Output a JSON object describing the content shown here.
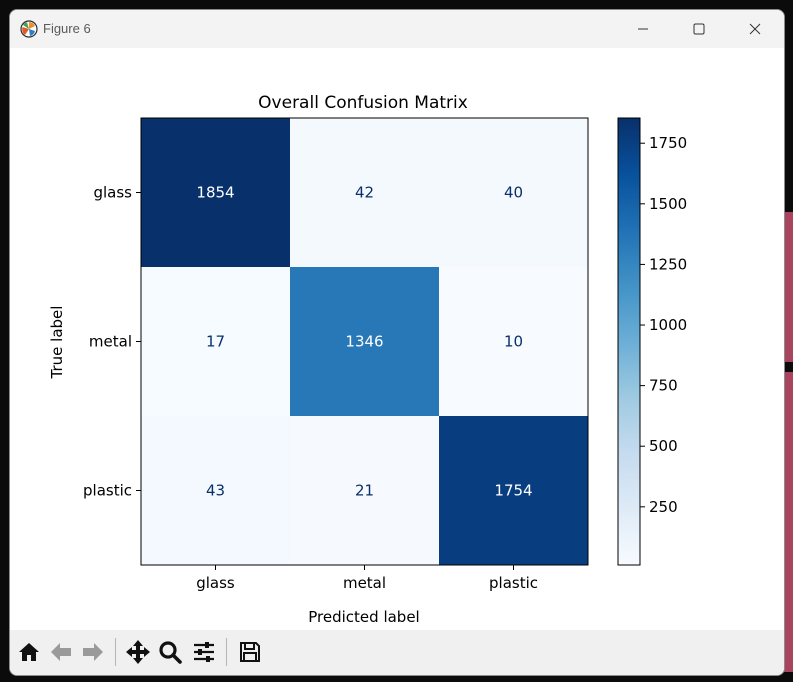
{
  "window": {
    "title": "Figure 6",
    "app_icon": "matplotlib-logo-icon",
    "controls": [
      "minimize-icon",
      "maximize-icon",
      "close-icon"
    ]
  },
  "toolbar": {
    "buttons": [
      "home-icon",
      "back-arrow-icon",
      "forward-arrow-icon",
      "pan-icon",
      "zoom-icon",
      "configure-subplots-icon",
      "save-icon"
    ]
  },
  "chart_data": {
    "type": "heatmap",
    "title": "Overall Confusion Matrix",
    "xlabel": "Predicted label",
    "ylabel": "True label",
    "x_categories": [
      "glass",
      "metal",
      "plastic"
    ],
    "y_categories": [
      "glass",
      "metal",
      "plastic"
    ],
    "matrix": [
      [
        1854,
        42,
        40
      ],
      [
        17,
        1346,
        10
      ],
      [
        43,
        21,
        1754
      ]
    ],
    "colormap": "Blues",
    "colorbar": {
      "min": 10,
      "max": 1854,
      "ticks": [
        250,
        500,
        750,
        1000,
        1250,
        1500,
        1750
      ]
    },
    "colors": {
      "light_text": "#ffffff",
      "dark_text": "#08306b"
    }
  }
}
